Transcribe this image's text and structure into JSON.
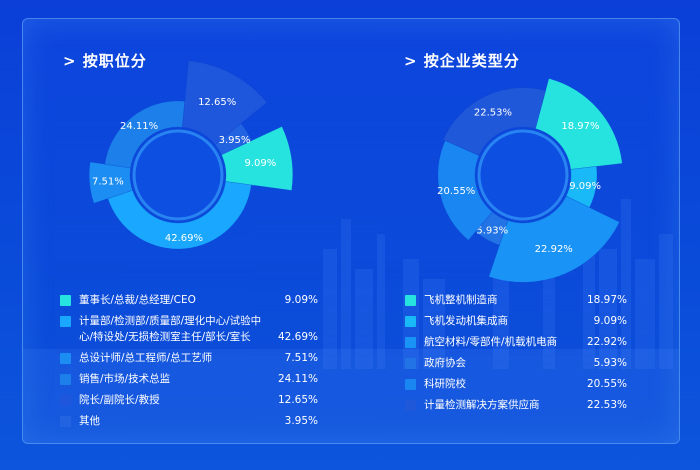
{
  "panels": [
    {
      "title": "> 按职位分",
      "chart_data": {
        "type": "pie",
        "title": "> 按职位分",
        "categories": [
          "董事长/总裁/总经理/CEO",
          "计量部/检测部/质量部/理化中心/试验中心/特设处/无损检测室主任/部长/室长",
          "总设计师/总工程师/总工艺师",
          "销售/市场/技术总监",
          "院长/副院长/教授",
          "其他"
        ],
        "values": [
          9.09,
          42.69,
          7.51,
          24.11,
          12.65,
          3.95
        ],
        "labels": [
          "9.09%",
          "42.69%",
          "7.51%",
          "24.11%",
          "12.65%",
          "3.95%"
        ],
        "colors": [
          "#26e3e0",
          "#1aa7ff",
          "#1c8df2",
          "#1c7fea",
          "#1e56dc",
          "#2263e2"
        ],
        "radii": [
          1.55,
          1.0,
          1.2,
          1.0,
          1.55,
          1.1
        ]
      },
      "legend_values": [
        "9.09%",
        "42.69%",
        "7.51%",
        "24.11%",
        "12.65%",
        "3.95%"
      ]
    },
    {
      "title": "> 按企业类型分",
      "chart_data": {
        "type": "pie",
        "title": "> 按企业类型分",
        "categories": [
          "飞机整机制造商",
          "飞机发动机集成商",
          "航空材料/零部件/机载机电商",
          "政府协会",
          "科研院校",
          "计量检测解决方案供应商"
        ],
        "values": [
          18.97,
          9.09,
          22.92,
          5.93,
          20.55,
          22.53
        ],
        "labels": [
          "18.97%",
          "9.09%",
          "22.92%",
          "5.93%",
          "20.55%",
          "22.53%"
        ],
        "colors": [
          "#26e3e0",
          "#19b8f6",
          "#1a93f6",
          "#2173e6",
          "#1a86f2",
          "#2058da"
        ],
        "radii": [
          1.35,
          1.0,
          1.45,
          1.0,
          1.15,
          1.18
        ]
      },
      "legend_values": [
        "18.97%",
        "9.09%",
        "22.92%",
        "5.93%",
        "20.55%",
        "22.53%"
      ]
    }
  ],
  "legend_left": [
    {
      "name": "董事长/总裁/总经理/CEO"
    },
    {
      "name": "计量部/检测部/质量部/理化中心/试验中心/特设处/无损检测室主任/部长/室长"
    },
    {
      "name": "总设计师/总工程师/总工艺师"
    },
    {
      "name": "销售/市场/技术总监"
    },
    {
      "name": "院长/副院长/教授"
    },
    {
      "name": "其他"
    }
  ],
  "legend_right": [
    {
      "name": "飞机整机制造商"
    },
    {
      "name": "飞机发动机集成商"
    },
    {
      "name": "航空材料/零部件/机载机电商"
    },
    {
      "name": "政府协会"
    },
    {
      "name": "科研院校"
    },
    {
      "name": "计量检测解决方案供应商"
    }
  ]
}
